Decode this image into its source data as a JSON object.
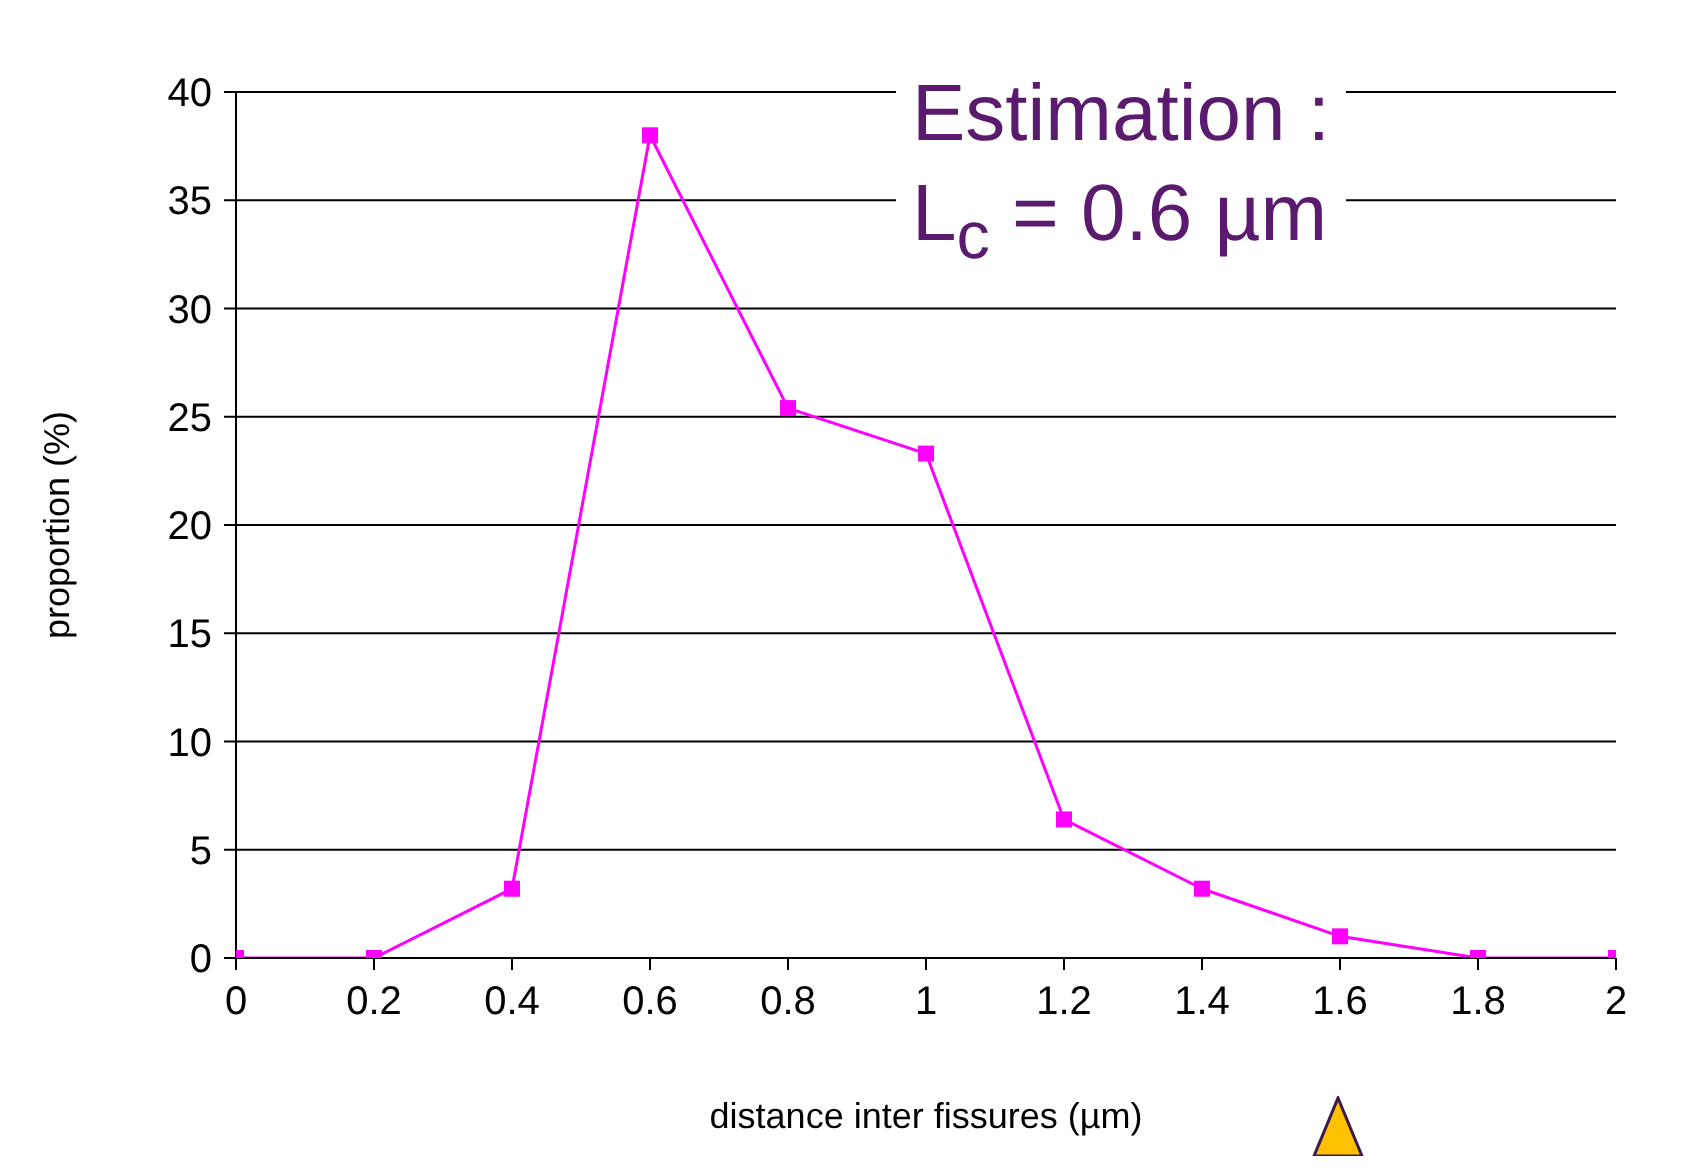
{
  "chart_data": {
    "type": "line",
    "xlabel": "distance inter fissures (µm)",
    "ylabel": "proportion (%)",
    "x": [
      0,
      0.2,
      0.4,
      0.6,
      0.8,
      1,
      1.2,
      1.4,
      1.6,
      1.8,
      2
    ],
    "series": [
      {
        "color": "#ff00ff",
        "values": [
          0,
          0,
          3.2,
          38,
          25.4,
          23.3,
          6.4,
          3.2,
          1,
          0,
          0
        ]
      }
    ],
    "xlim": [
      0,
      2
    ],
    "xticks": [
      0,
      0.2,
      0.4,
      0.6,
      0.8,
      1,
      1.2,
      1.4,
      1.6,
      1.8,
      2
    ],
    "ylim": [
      0,
      40
    ],
    "yticks": [
      0,
      5,
      10,
      15,
      20,
      25,
      30,
      35,
      40
    ],
    "grid": "y",
    "marker": "square",
    "line_style": "solid",
    "annotations": [
      "Estimation :",
      "L$_{c}$ = 0.6 µm"
    ]
  }
}
